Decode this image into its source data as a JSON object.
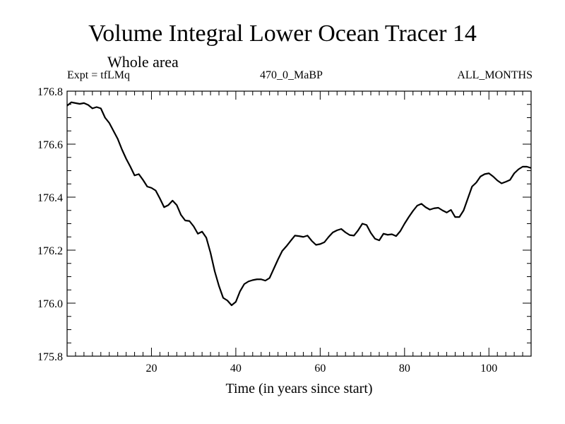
{
  "chart_data": {
    "type": "line",
    "title": "Volume Integral Lower Ocean Tracer 14",
    "subtitle": "Whole area",
    "expt_label": "Expt = tfLMq",
    "center_label": "470_0_MaBP",
    "right_label": "ALL_MONTHS",
    "xlabel": "Time (in years since start)",
    "ylabel": "",
    "xlim": [
      0,
      110
    ],
    "ylim": [
      175.8,
      176.8
    ],
    "xticks": [
      20,
      40,
      60,
      80,
      100
    ],
    "xtick_labels": [
      "20",
      "40",
      "60",
      "80",
      "100"
    ],
    "yticks": [
      175.8,
      176.0,
      176.2,
      176.4,
      176.6,
      176.8
    ],
    "ytick_labels": [
      "175.8",
      "176.0",
      "176.2",
      "176.4",
      "176.6",
      "176.8"
    ],
    "grid": false,
    "series": [
      {
        "name": "Volume Integral Lower Ocean Tracer 14",
        "x": [
          0,
          1,
          2,
          3,
          4,
          5,
          6,
          7,
          8,
          9,
          10,
          11,
          12,
          13,
          14,
          15,
          16,
          17,
          18,
          19,
          20,
          21,
          22,
          23,
          24,
          25,
          26,
          27,
          28,
          29,
          30,
          31,
          32,
          33,
          34,
          35,
          36,
          37,
          38,
          39,
          40,
          41,
          42,
          43,
          44,
          45,
          46,
          47,
          48,
          49,
          50,
          51,
          52,
          53,
          54,
          55,
          56,
          57,
          58,
          59,
          60,
          61,
          62,
          63,
          64,
          65,
          66,
          67,
          68,
          69,
          70,
          71,
          72,
          73,
          74,
          75,
          76,
          77,
          78,
          79,
          80,
          81,
          82,
          83,
          84,
          85,
          86,
          87,
          88,
          89,
          90,
          91,
          92,
          93,
          94,
          95,
          96,
          97,
          98,
          99,
          100,
          101,
          102,
          103,
          104,
          105,
          106,
          107,
          108,
          109,
          110
        ],
        "values": [
          176.745,
          176.758,
          176.755,
          176.752,
          176.755,
          176.748,
          176.735,
          176.74,
          176.735,
          176.7,
          176.68,
          176.65,
          176.62,
          176.58,
          176.545,
          176.515,
          176.482,
          176.487,
          176.465,
          176.44,
          176.435,
          176.425,
          176.395,
          176.362,
          176.37,
          176.387,
          176.37,
          176.333,
          176.312,
          176.31,
          176.29,
          176.262,
          176.27,
          176.247,
          176.19,
          176.12,
          176.065,
          176.02,
          176.01,
          175.992,
          176.005,
          176.045,
          176.072,
          176.082,
          176.087,
          176.09,
          176.09,
          176.085,
          176.095,
          176.13,
          176.165,
          176.197,
          176.215,
          176.235,
          176.255,
          176.253,
          176.25,
          176.255,
          176.235,
          176.22,
          176.223,
          176.23,
          176.25,
          176.267,
          176.275,
          176.28,
          176.267,
          176.257,
          176.255,
          176.275,
          176.3,
          176.295,
          176.265,
          176.243,
          176.237,
          176.262,
          176.258,
          176.26,
          176.253,
          176.272,
          176.3,
          176.325,
          176.348,
          176.368,
          176.375,
          176.362,
          176.353,
          176.358,
          176.36,
          176.35,
          176.342,
          176.352,
          176.325,
          176.325,
          176.35,
          176.395,
          176.44,
          176.455,
          176.478,
          176.487,
          176.49,
          176.478,
          176.463,
          176.452,
          176.458,
          176.465,
          176.49,
          176.505,
          176.515,
          176.515,
          176.51
        ]
      }
    ]
  }
}
